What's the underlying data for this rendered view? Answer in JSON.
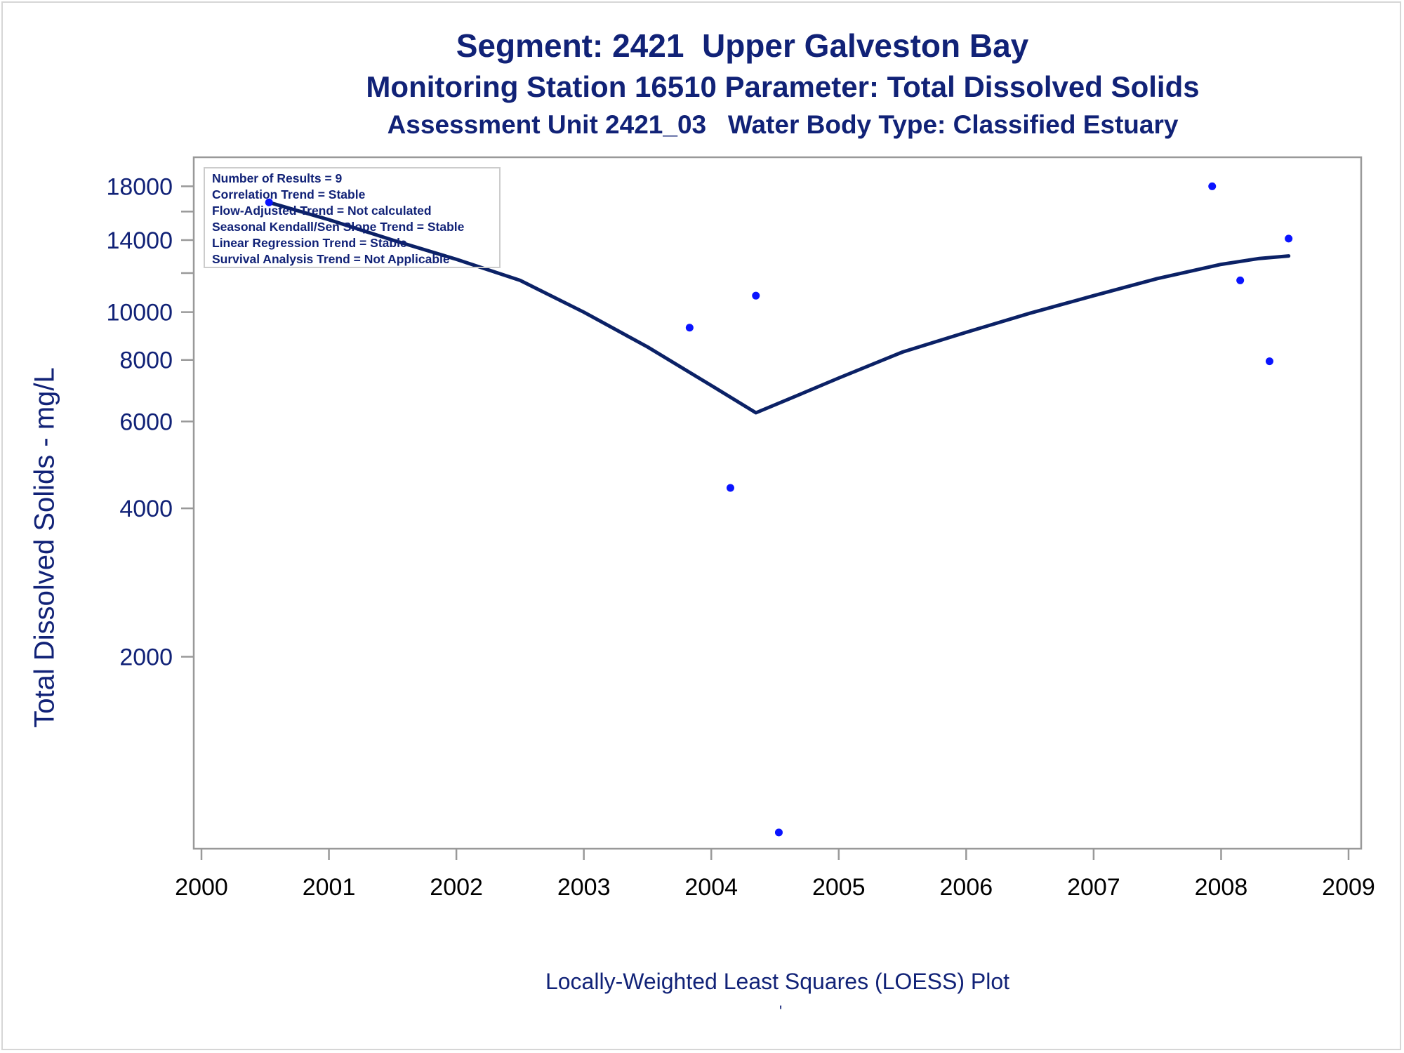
{
  "chart_data": {
    "type": "scatter",
    "title": "Segment: 2421  Upper Galveston Bay",
    "subtitle": "Monitoring Station 16510 Parameter: Total Dissolved Solids",
    "subtitle2": "Assessment Unit 2421_03   Water Body Type: Classified Estuary",
    "xlabel": "",
    "ylabel": "Total Dissolved Solids - mg/L",
    "footnote": "Locally-Weighted Least Squares (LOESS) Plot",
    "tick_mark_note": "'",
    "x_scale": "linear",
    "y_scale": "log",
    "xlim": [
      2000,
      2009
    ],
    "ylim": [
      840,
      19500
    ],
    "x_ticks": [
      2000,
      2001,
      2002,
      2003,
      2004,
      2005,
      2006,
      2007,
      2008,
      2009
    ],
    "x_tick_labels": [
      "2000",
      "2001",
      "2002",
      "2003",
      "2004",
      "2005",
      "2006",
      "2007",
      "2008",
      "2009"
    ],
    "y_ticks": [
      2000,
      4000,
      6000,
      8000,
      10000,
      14000,
      18000
    ],
    "y_tick_labels": [
      "2000",
      "4000",
      "6000",
      "8000",
      "10000",
      "14000",
      "18000"
    ],
    "y_minor_ticks": [
      12000,
      16000
    ],
    "grid": false,
    "series": [
      {
        "kind": "points",
        "color": "#0a14ff",
        "points": [
          {
            "x": 2000.53,
            "y": 16700
          },
          {
            "x": 2003.83,
            "y": 9300
          },
          {
            "x": 2004.15,
            "y": 4400
          },
          {
            "x": 2004.35,
            "y": 10800
          },
          {
            "x": 2004.53,
            "y": 880
          },
          {
            "x": 2007.93,
            "y": 18000
          },
          {
            "x": 2008.15,
            "y": 11600
          },
          {
            "x": 2008.38,
            "y": 7950
          },
          {
            "x": 2008.53,
            "y": 14100
          }
        ]
      },
      {
        "kind": "loess",
        "color": "#0b2166",
        "points": [
          {
            "x": 2000.53,
            "y": 16700
          },
          {
            "x": 2001.0,
            "y": 15400
          },
          {
            "x": 2001.5,
            "y": 14000
          },
          {
            "x": 2002.0,
            "y": 12800
          },
          {
            "x": 2002.5,
            "y": 11600
          },
          {
            "x": 2003.0,
            "y": 10000
          },
          {
            "x": 2003.5,
            "y": 8500
          },
          {
            "x": 2004.0,
            "y": 7100
          },
          {
            "x": 2004.35,
            "y": 6250
          },
          {
            "x": 2004.6,
            "y": 6650
          },
          {
            "x": 2005.0,
            "y": 7350
          },
          {
            "x": 2005.5,
            "y": 8300
          },
          {
            "x": 2006.0,
            "y": 9100
          },
          {
            "x": 2006.5,
            "y": 9950
          },
          {
            "x": 2007.0,
            "y": 10800
          },
          {
            "x": 2007.5,
            "y": 11700
          },
          {
            "x": 2008.0,
            "y": 12500
          },
          {
            "x": 2008.3,
            "y": 12850
          },
          {
            "x": 2008.53,
            "y": 13000
          }
        ]
      }
    ],
    "stats_box": [
      "Number of Results = 9",
      "Correlation Trend = Stable",
      "Flow-Adjusted Trend = Not calculated",
      "Seasonal Kendall/Sen Slope Trend = Stable",
      "Linear Regression Trend = Stable",
      "Survival Analysis Trend = Not Applicable"
    ],
    "stats_box_placement": "top-left",
    "colors": {
      "text": "#112277",
      "axis": "#999999",
      "points": "#0a14ff",
      "line": "#0b2166"
    }
  }
}
